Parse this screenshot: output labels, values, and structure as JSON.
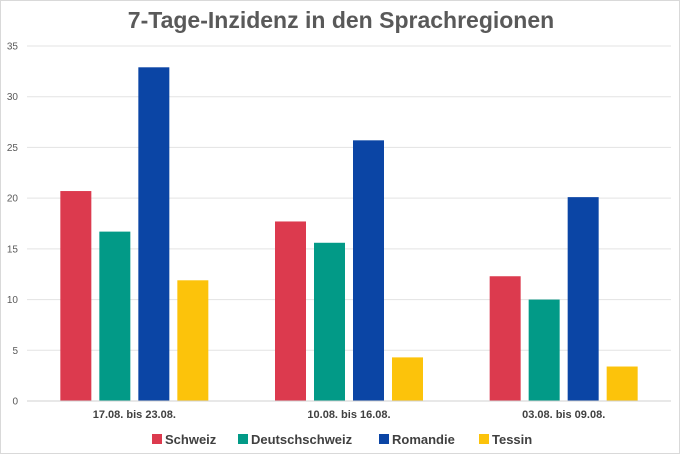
{
  "chart_data": {
    "type": "bar",
    "title": "7-Tage-Inzidenz in den Sprachregionen",
    "categories": [
      "17.08. bis 23.08.",
      "10.08. bis 16.08.",
      "03.08. bis 09.08."
    ],
    "series": [
      {
        "name": "Schweiz",
        "color": "#dc3a4e",
        "values": [
          20.7,
          17.7,
          12.3
        ]
      },
      {
        "name": "Deutschschweiz",
        "color": "#029a87",
        "values": [
          16.7,
          15.6,
          10.0
        ]
      },
      {
        "name": "Romandie",
        "color": "#0b45a5",
        "values": [
          32.9,
          25.7,
          20.1
        ]
      },
      {
        "name": "Tessin",
        "color": "#fcc30b",
        "values": [
          11.9,
          4.3,
          3.4
        ]
      }
    ],
    "yticks": [
      "0",
      "5",
      "10",
      "15",
      "20",
      "25",
      "30",
      "35"
    ],
    "ylim": [
      0,
      35
    ],
    "xlabel": "",
    "ylabel": "",
    "grid": true,
    "legend_position": "bottom"
  }
}
